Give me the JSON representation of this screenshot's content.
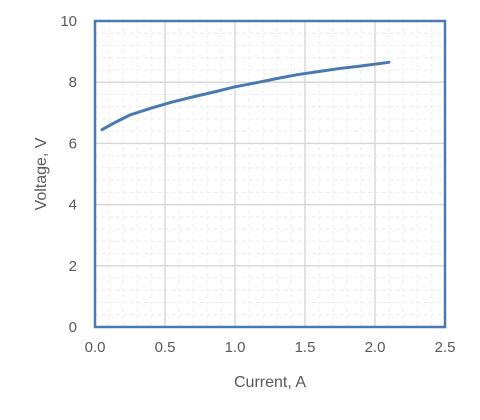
{
  "chart_data": {
    "type": "line",
    "title": "",
    "xlabel": "Current, A",
    "ylabel": "Voltage, V",
    "xlim": [
      0,
      2.5
    ],
    "ylim": [
      0,
      10
    ],
    "x_ticks": [
      0,
      0.5,
      1.0,
      1.5,
      2.0,
      2.5
    ],
    "x_tick_labels": [
      "0.0",
      "0.5",
      "1.0",
      "1.5",
      "2.0",
      "2.5"
    ],
    "y_ticks": [
      0,
      2,
      4,
      6,
      8,
      10
    ],
    "y_tick_labels": [
      "0",
      "2",
      "4",
      "6",
      "8",
      "10"
    ],
    "x_minor_step": 0.1,
    "y_minor_step": 0.4,
    "grid": true,
    "legend": "none",
    "colors": {
      "line": "#4a78b0",
      "frame": "#4a78b0",
      "major_grid": "#d9d9d9",
      "minor_grid": "#ececec"
    },
    "series": [
      {
        "x": [
          0.05,
          0.15,
          0.25,
          0.4,
          0.55,
          0.7,
          0.85,
          1.0,
          1.15,
          1.3,
          1.45,
          1.6,
          1.75,
          1.9,
          2.1
        ],
        "y": [
          6.45,
          6.7,
          6.93,
          7.15,
          7.35,
          7.52,
          7.68,
          7.85,
          7.98,
          8.12,
          8.25,
          8.35,
          8.45,
          8.53,
          8.65
        ]
      }
    ]
  }
}
